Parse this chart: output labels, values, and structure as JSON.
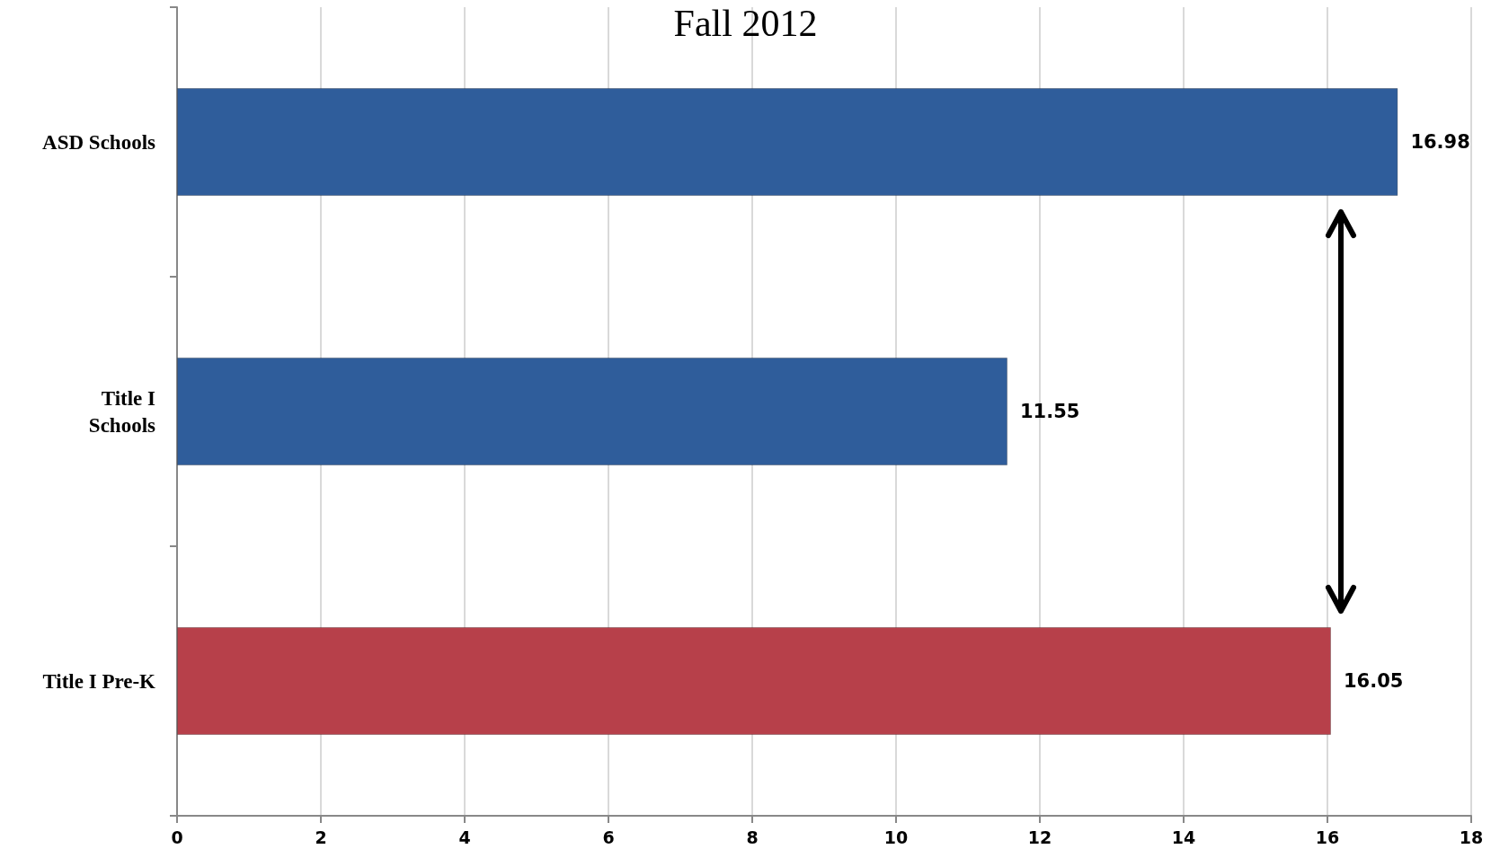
{
  "chart_data": {
    "type": "bar",
    "orientation": "horizontal",
    "title": "Fall 2012",
    "categories": [
      "ASD Schools",
      "Title I\nSchools",
      "Title I Pre-K"
    ],
    "values": [
      16.98,
      11.55,
      16.05
    ],
    "colors": [
      "#2f5d9b",
      "#2f5d9b",
      "#b7404a"
    ],
    "xlim": [
      0,
      18
    ],
    "xticks": [
      0,
      2,
      4,
      6,
      8,
      10,
      12,
      14,
      16,
      18
    ],
    "grid": "x",
    "data_labels": true
  }
}
